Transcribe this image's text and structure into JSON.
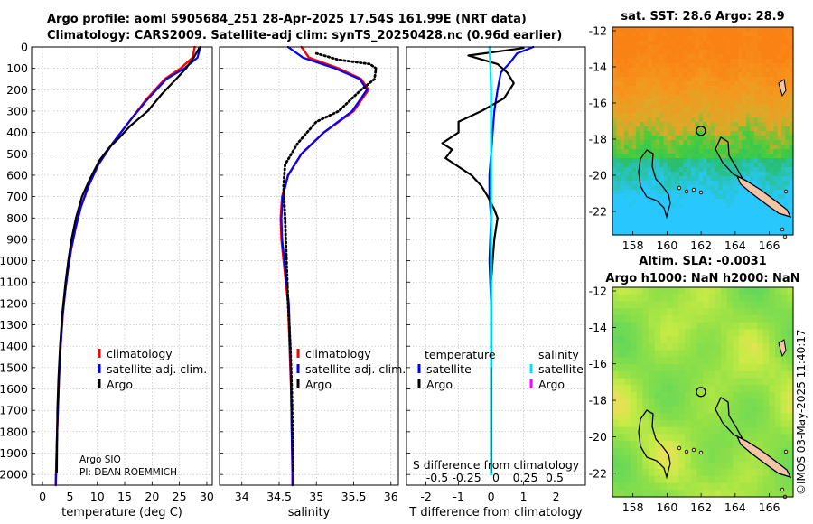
{
  "header": {
    "line1": "Argo profile: aoml 5905684_251 28-Apr-2025 17.54S 161.99E (NRT data)",
    "line2": "Climatology: CARS2009. Satellite-adj clim: synTS_20250428.nc (0.96d earlier)"
  },
  "colors": {
    "climatology": "#ff0000",
    "satellite": "#0000ff",
    "argo": "#000000",
    "sat_salinity": "#00e5ee",
    "argo_salinity": "#ff00ff",
    "land": "#f2c4a8"
  },
  "chart_data": [
    {
      "type": "line",
      "name": "temperature",
      "xlabel": "temperature (deg C)",
      "ylabel": "",
      "xlim": [
        -2,
        31
      ],
      "xticks": [
        0,
        5,
        10,
        15,
        20,
        25,
        30
      ],
      "ylim": [
        2050,
        0
      ],
      "yticks": [
        0,
        100,
        200,
        300,
        400,
        500,
        600,
        700,
        800,
        900,
        1000,
        1100,
        1200,
        1300,
        1400,
        1500,
        1600,
        1700,
        1800,
        1900,
        2000
      ],
      "legend": [
        "climatology",
        "satellite-adj. clim.",
        "Argo"
      ],
      "notes": [
        "Argo SIO",
        "PI: DEAN ROEMMICH"
      ],
      "series": [
        {
          "name": "climatology",
          "x": [
            27.8,
            27.4,
            25.2,
            22.3,
            18.8,
            15.8,
            12.8,
            10.2,
            8.4,
            7.0,
            6.0,
            5.2,
            4.6,
            4.1,
            3.7,
            3.3,
            3.0,
            2.8,
            2.6,
            2.5,
            2.4
          ],
          "y": [
            0,
            50,
            100,
            150,
            250,
            350,
            450,
            550,
            650,
            750,
            850,
            950,
            1050,
            1150,
            1250,
            1400,
            1550,
            1700,
            1850,
            1950,
            2050
          ]
        },
        {
          "name": "satellite-adj. clim.",
          "x": [
            28.8,
            28.3,
            25.9,
            22.6,
            19.0,
            15.8,
            12.8,
            10.2,
            8.4,
            7.0,
            6.0,
            5.2,
            4.6,
            4.1,
            3.7,
            3.3,
            3.0,
            2.8,
            2.6,
            2.5,
            2.4
          ],
          "y": [
            0,
            50,
            100,
            150,
            250,
            350,
            450,
            550,
            650,
            750,
            850,
            950,
            1050,
            1150,
            1250,
            1400,
            1550,
            1700,
            1850,
            1950,
            2050
          ]
        },
        {
          "name": "Argo",
          "x": [
            28.6,
            27.6,
            26.2,
            24.4,
            21.8,
            19.2,
            16.0,
            13.8,
            12.2,
            11.0,
            10.4,
            9.8,
            8.6,
            7.2,
            6.1,
            5.3,
            4.7,
            4.2,
            3.6,
            3.2,
            2.9,
            2.7,
            2.6
          ],
          "y": [
            5,
            50,
            100,
            150,
            220,
            300,
            370,
            430,
            470,
            510,
            530,
            560,
            620,
            700,
            800,
            900,
            1000,
            1100,
            1250,
            1400,
            1550,
            1700,
            1990
          ]
        }
      ]
    },
    {
      "type": "line",
      "name": "salinity",
      "xlabel": "salinity",
      "xlim": [
        33.7,
        36.1
      ],
      "xticks": [
        34,
        34.5,
        35,
        35.5,
        36
      ],
      "ylim": [
        2050,
        0
      ],
      "legend": [
        "climatology",
        "satellite-adj. clim.",
        "Argo"
      ],
      "series": [
        {
          "name": "climatology",
          "x": [
            34.8,
            34.9,
            35.3,
            35.6,
            35.7,
            35.5,
            35.1,
            34.8,
            34.62,
            34.54,
            34.52,
            34.53,
            34.56,
            34.59,
            34.62,
            34.64,
            34.66,
            34.67,
            34.68,
            34.68
          ],
          "y": [
            0,
            50,
            100,
            150,
            200,
            300,
            400,
            500,
            600,
            700,
            800,
            900,
            1000,
            1100,
            1200,
            1400,
            1600,
            1800,
            2000,
            2050
          ]
        },
        {
          "name": "satellite-adj. clim.",
          "x": [
            34.62,
            34.82,
            35.25,
            35.58,
            35.68,
            35.48,
            35.1,
            34.8,
            34.62,
            34.55,
            34.53,
            34.54,
            34.57,
            34.6,
            34.63,
            34.65,
            34.66,
            34.67,
            34.68,
            34.68
          ],
          "y": [
            0,
            50,
            100,
            150,
            200,
            300,
            400,
            500,
            600,
            700,
            800,
            900,
            1000,
            1100,
            1200,
            1400,
            1600,
            1800,
            2000,
            2050
          ]
        },
        {
          "name": "Argo",
          "x": [
            35.0,
            35.3,
            35.72,
            35.8,
            35.78,
            35.6,
            35.3,
            35.0,
            34.75,
            34.58,
            34.56,
            34.58,
            34.6,
            34.62,
            34.65,
            34.67,
            34.68,
            34.69
          ],
          "y": [
            30,
            60,
            80,
            100,
            150,
            200,
            300,
            350,
            450,
            550,
            650,
            800,
            1000,
            1200,
            1400,
            1600,
            1800,
            1990
          ]
        }
      ]
    },
    {
      "type": "line",
      "name": "difference",
      "xlabel": "T difference from climatology",
      "x2label": "S difference from climatology",
      "xlim": [
        -2.6,
        2.9
      ],
      "xticks": [
        -2,
        -1,
        0,
        1,
        2
      ],
      "x2ticks": [
        -0.5,
        -0.25,
        0,
        0.25,
        0.5
      ],
      "ylim": [
        2050,
        0
      ],
      "legend_temperature_title": "temperature",
      "legend_salinity_title": "salinity",
      "legend_temperature": [
        "satellite",
        "Argo"
      ],
      "legend_salinity": [
        "satellite",
        "Argo"
      ],
      "series": [
        {
          "name": "temperature satellite",
          "x": [
            1.3,
            0.8,
            0.6,
            0.3,
            0.2,
            0.1,
            0.05,
            0.0,
            -0.05,
            -0.05,
            0.0,
            -0.05,
            0.0,
            0.0,
            0.0,
            0.0
          ],
          "y": [
            0,
            30,
            70,
            120,
            200,
            300,
            400,
            500,
            600,
            700,
            800,
            1000,
            1200,
            1500,
            1800,
            2000
          ]
        },
        {
          "name": "temperature Argo",
          "x": [
            1.0,
            -0.7,
            0.2,
            0.5,
            0.7,
            0.4,
            -0.3,
            -1.0,
            -1.0,
            -1.5,
            -1.2,
            -1.4,
            -1.0,
            -0.6,
            -0.3,
            -0.1,
            0.1,
            0.2,
            0.1,
            0.0,
            0.0,
            0.0
          ],
          "y": [
            5,
            40,
            80,
            120,
            170,
            240,
            300,
            350,
            400,
            450,
            480,
            520,
            560,
            600,
            650,
            700,
            760,
            800,
            900,
            1100,
            1500,
            1990
          ]
        },
        {
          "name": "salinity satellite",
          "x": [
            -0.05,
            -0.02,
            0.0,
            0.0,
            0.0,
            0.0,
            0.0,
            0.0,
            0.0,
            0.0
          ],
          "y": [
            0,
            100,
            200,
            300,
            500,
            800,
            1100,
            1400,
            1700,
            2000
          ]
        },
        {
          "name": "salinity Argo",
          "x": [
            0.0,
            0.0
          ],
          "y": [
            1500,
            1990
          ]
        }
      ]
    },
    {
      "type": "heatmap",
      "name": "SST map",
      "title": "sat. SST: 28.6 Argo: 28.9",
      "xticks": [
        158,
        160,
        162,
        164,
        166
      ],
      "yticks": [
        -12,
        -14,
        -16,
        -18,
        -20,
        -22
      ],
      "xlim": [
        156.8,
        167.4
      ],
      "ylim": [
        -23.3,
        -11.8
      ],
      "argo_position": [
        161.99,
        -17.54
      ]
    },
    {
      "type": "heatmap",
      "name": "SLA map",
      "title1": "Altim. SLA: -0.0031",
      "title2": "Argo h1000: NaN h2000: NaN",
      "xticks": [
        158,
        160,
        162,
        164,
        166
      ],
      "yticks": [
        -12,
        -14,
        -16,
        -18,
        -20,
        -22
      ],
      "xlim": [
        156.8,
        167.4
      ],
      "ylim": [
        -23.3,
        -11.8
      ],
      "argo_position": [
        161.99,
        -17.54
      ]
    }
  ],
  "footer": {
    "stamp": "©IMOS 03-May-2025 11:40:17"
  }
}
